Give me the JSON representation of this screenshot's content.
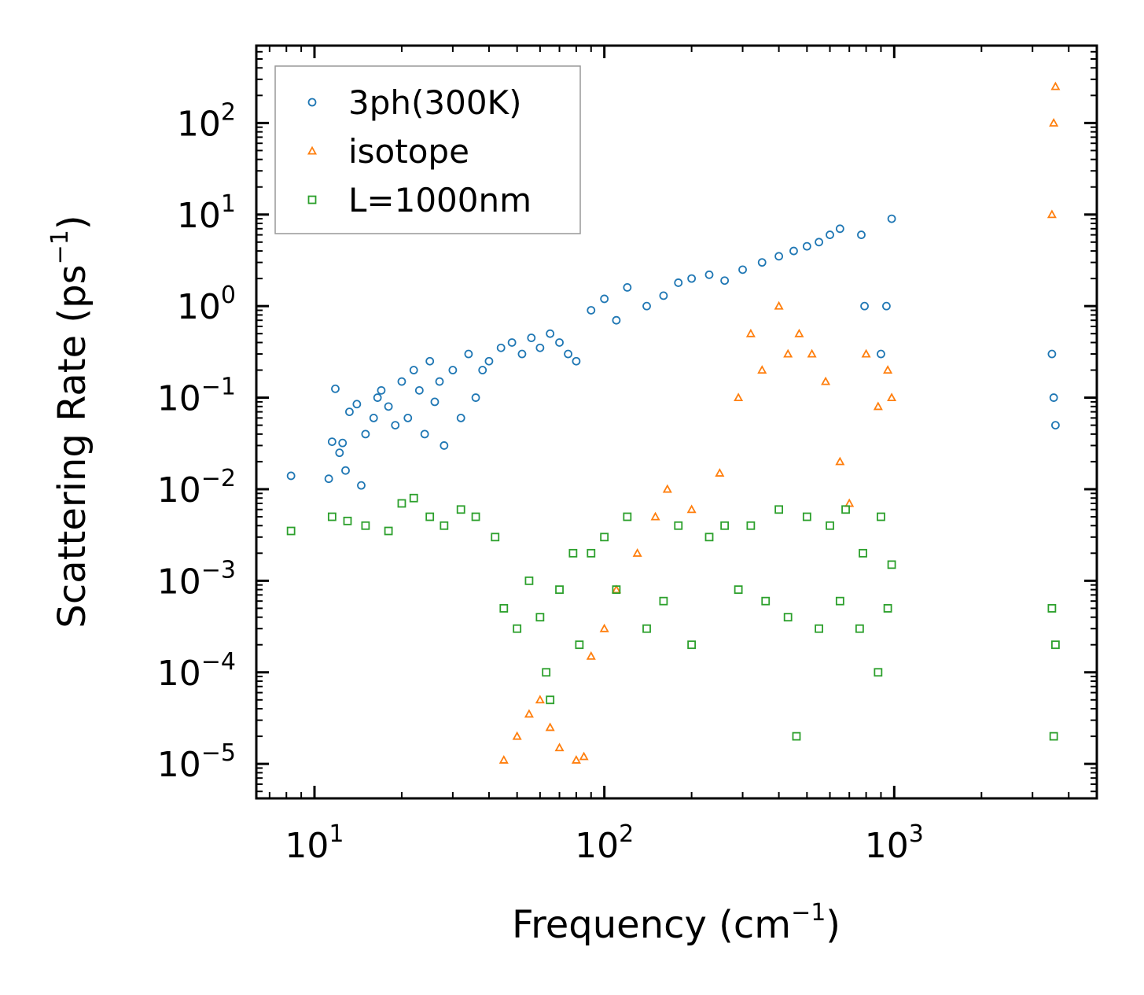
{
  "chart_data": {
    "type": "scatter",
    "xscale": "log",
    "yscale": "log",
    "xlabel": {
      "text": "Frequency (cm",
      "sup": "−1",
      "tail": ")"
    },
    "ylabel": {
      "text": "Scattering Rate (ps",
      "sup": "−1",
      "tail": ")"
    },
    "xlim": [
      6.3,
      5000
    ],
    "ylim": [
      4.2e-06,
      700
    ],
    "x_ticks": [
      {
        "value": 10,
        "base": "10",
        "exp": "1"
      },
      {
        "value": 100,
        "base": "10",
        "exp": "2"
      },
      {
        "value": 1000,
        "base": "10",
        "exp": "3"
      }
    ],
    "y_ticks": [
      {
        "value": 100,
        "base": "10",
        "exp": "2"
      },
      {
        "value": 10,
        "base": "10",
        "exp": "1"
      },
      {
        "value": 1,
        "base": "10",
        "exp": "0"
      },
      {
        "value": 0.1,
        "base": "10",
        "exp": "−1"
      },
      {
        "value": 0.01,
        "base": "10",
        "exp": "−2"
      },
      {
        "value": 0.001,
        "base": "10",
        "exp": "−3"
      },
      {
        "value": 0.0001,
        "base": "10",
        "exp": "−4"
      },
      {
        "value": 1e-05,
        "base": "10",
        "exp": "−5"
      }
    ],
    "legend": {
      "position": "upper-left"
    },
    "series": [
      {
        "name": "3ph(300K)",
        "marker": "circle",
        "color": "#1f77b4",
        "points": [
          [
            8.3,
            0.014
          ],
          [
            11.2,
            0.013
          ],
          [
            11.5,
            0.033
          ],
          [
            11.8,
            0.125
          ],
          [
            12.2,
            0.025
          ],
          [
            12.5,
            0.032
          ],
          [
            12.8,
            0.016
          ],
          [
            13.2,
            0.07
          ],
          [
            14,
            0.085
          ],
          [
            14.5,
            0.011
          ],
          [
            15,
            0.04
          ],
          [
            16,
            0.06
          ],
          [
            16.5,
            0.1
          ],
          [
            17,
            0.12
          ],
          [
            18,
            0.08
          ],
          [
            19,
            0.05
          ],
          [
            20,
            0.15
          ],
          [
            21,
            0.06
          ],
          [
            22,
            0.2
          ],
          [
            23,
            0.12
          ],
          [
            24,
            0.04
          ],
          [
            25,
            0.25
          ],
          [
            26,
            0.09
          ],
          [
            27,
            0.15
          ],
          [
            28,
            0.03
          ],
          [
            30,
            0.2
          ],
          [
            32,
            0.06
          ],
          [
            34,
            0.3
          ],
          [
            36,
            0.1
          ],
          [
            38,
            0.2
          ],
          [
            40,
            0.25
          ],
          [
            44,
            0.35
          ],
          [
            48,
            0.4
          ],
          [
            52,
            0.3
          ],
          [
            56,
            0.45
          ],
          [
            60,
            0.35
          ],
          [
            65,
            0.5
          ],
          [
            70,
            0.4
          ],
          [
            75,
            0.3
          ],
          [
            80,
            0.25
          ],
          [
            90,
            0.9
          ],
          [
            100,
            1.2
          ],
          [
            110,
            0.7
          ],
          [
            120,
            1.6
          ],
          [
            140,
            1.0
          ],
          [
            160,
            1.3
          ],
          [
            180,
            1.8
          ],
          [
            200,
            2.0
          ],
          [
            230,
            2.2
          ],
          [
            260,
            1.9
          ],
          [
            300,
            2.5
          ],
          [
            350,
            3.0
          ],
          [
            400,
            3.5
          ],
          [
            450,
            4.0
          ],
          [
            500,
            4.5
          ],
          [
            550,
            5.0
          ],
          [
            600,
            6.0
          ],
          [
            650,
            7.0
          ],
          [
            770,
            6.0
          ],
          [
            790,
            1.0
          ],
          [
            900,
            0.3
          ],
          [
            940,
            1.0
          ],
          [
            980,
            9.0
          ],
          [
            3500,
            0.3
          ],
          [
            3550,
            0.1
          ],
          [
            3600,
            0.05
          ]
        ]
      },
      {
        "name": "isotope",
        "marker": "triangle",
        "color": "#ff7f0e",
        "points": [
          [
            45,
            1.1e-05
          ],
          [
            50,
            2e-05
          ],
          [
            55,
            3.5e-05
          ],
          [
            60,
            5e-05
          ],
          [
            65,
            2.5e-05
          ],
          [
            70,
            1.5e-05
          ],
          [
            80,
            1.1e-05
          ],
          [
            85,
            1.2e-05
          ],
          [
            90,
            0.00015
          ],
          [
            100,
            0.0003
          ],
          [
            110,
            0.0008
          ],
          [
            130,
            0.002
          ],
          [
            150,
            0.005
          ],
          [
            165,
            0.01
          ],
          [
            200,
            0.006
          ],
          [
            250,
            0.015
          ],
          [
            290,
            0.1
          ],
          [
            320,
            0.5
          ],
          [
            350,
            0.2
          ],
          [
            400,
            1.0
          ],
          [
            430,
            0.3
          ],
          [
            470,
            0.5
          ],
          [
            520,
            0.3
          ],
          [
            580,
            0.15
          ],
          [
            650,
            0.02
          ],
          [
            700,
            0.007
          ],
          [
            800,
            0.3
          ],
          [
            880,
            0.08
          ],
          [
            950,
            0.2
          ],
          [
            980,
            0.1
          ],
          [
            3500,
            10
          ],
          [
            3550,
            100
          ],
          [
            3600,
            250
          ]
        ]
      },
      {
        "name": "L=1000nm",
        "marker": "square",
        "color": "#2ca02c",
        "points": [
          [
            8.3,
            0.0035
          ],
          [
            11.5,
            0.005
          ],
          [
            13,
            0.0045
          ],
          [
            15,
            0.004
          ],
          [
            18,
            0.0035
          ],
          [
            20,
            0.007
          ],
          [
            22,
            0.008
          ],
          [
            25,
            0.005
          ],
          [
            28,
            0.004
          ],
          [
            32,
            0.006
          ],
          [
            36,
            0.005
          ],
          [
            42,
            0.003
          ],
          [
            45,
            0.0005
          ],
          [
            50,
            0.0003
          ],
          [
            55,
            0.001
          ],
          [
            60,
            0.0004
          ],
          [
            63,
            0.0001
          ],
          [
            65,
            5e-05
          ],
          [
            70,
            0.0008
          ],
          [
            78,
            0.002
          ],
          [
            82,
            0.0002
          ],
          [
            90,
            0.002
          ],
          [
            100,
            0.003
          ],
          [
            110,
            0.0008
          ],
          [
            120,
            0.005
          ],
          [
            140,
            0.0003
          ],
          [
            160,
            0.0006
          ],
          [
            180,
            0.004
          ],
          [
            200,
            0.0002
          ],
          [
            230,
            0.003
          ],
          [
            260,
            0.004
          ],
          [
            290,
            0.0008
          ],
          [
            320,
            0.004
          ],
          [
            360,
            0.0006
          ],
          [
            400,
            0.006
          ],
          [
            430,
            0.0004
          ],
          [
            460,
            2e-05
          ],
          [
            500,
            0.005
          ],
          [
            550,
            0.0003
          ],
          [
            600,
            0.004
          ],
          [
            650,
            0.0006
          ],
          [
            680,
            0.006
          ],
          [
            760,
            0.0003
          ],
          [
            780,
            0.002
          ],
          [
            880,
            0.0001
          ],
          [
            900,
            0.005
          ],
          [
            950,
            0.0005
          ],
          [
            980,
            0.0015
          ],
          [
            3500,
            0.0005
          ],
          [
            3550,
            2e-05
          ],
          [
            3600,
            0.0002
          ]
        ]
      }
    ]
  }
}
